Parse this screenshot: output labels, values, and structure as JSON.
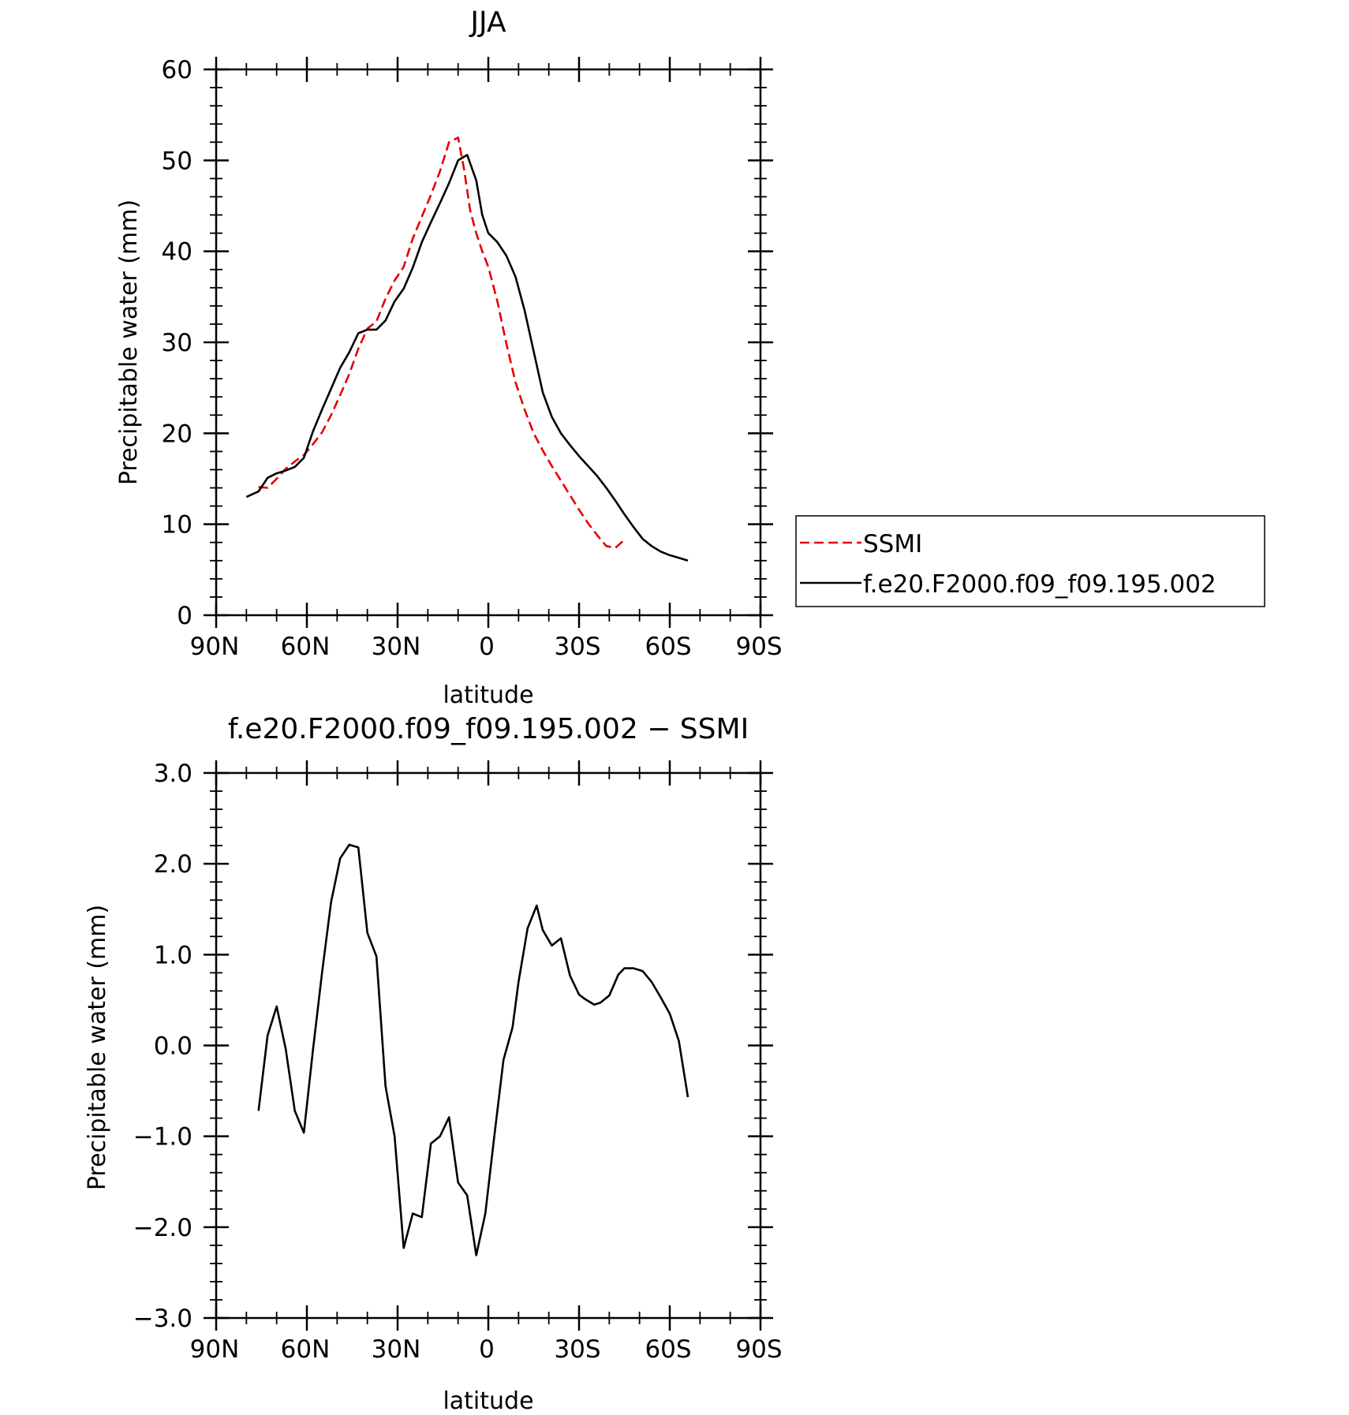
{
  "colors": {
    "ssmi": "#e60000",
    "model": "#000000",
    "axis": "#000000"
  },
  "charts": [
    {
      "title": "JJA",
      "xlabel": "latitude",
      "ylabel": "Precipitable water (mm)",
      "xticks": [
        "90N",
        "60N",
        "30N",
        "0",
        "30S",
        "60S",
        "90S"
      ],
      "yticks": [
        "0",
        "10",
        "20",
        "30",
        "40",
        "50",
        "60"
      ]
    },
    {
      "title": "f.e20.F2000.f09_f09.195.002 − SSMI",
      "xlabel": "latitude",
      "ylabel": "Precipitable water (mm)",
      "xticks": [
        "90N",
        "60N",
        "30N",
        "0",
        "30S",
        "60S",
        "90S"
      ],
      "yticks": [
        "−3.0",
        "−2.0",
        "−1.0",
        "0.0",
        "1.0",
        "2.0",
        "3.0"
      ]
    }
  ],
  "legend": {
    "entries": [
      "SSMI",
      "f.e20.F2000.f09_f09.195.002"
    ]
  },
  "chart_data": [
    {
      "type": "line",
      "title": "JJA",
      "xlabel": "latitude",
      "ylabel": "Precipitable water (mm)",
      "xlim": [
        90,
        -90
      ],
      "ylim": [
        0,
        60
      ],
      "legend_position": "right",
      "series": [
        {
          "name": "SSMI",
          "style": "dashed",
          "color": "#e60000",
          "x": [
            76,
            73,
            70,
            67,
            64,
            61,
            58,
            55,
            52,
            49,
            46,
            43,
            40,
            37,
            34,
            31,
            28,
            25,
            22,
            19,
            16,
            13,
            10,
            8,
            6,
            4,
            2,
            0,
            -3,
            -6,
            -9,
            -12,
            -15,
            -18,
            -21,
            -24,
            -27,
            -30,
            -33,
            -36,
            -39,
            -42,
            -45,
            -48,
            -51,
            -54,
            -57,
            -60,
            -63,
            -66
          ],
          "y": [
            14.1,
            14.0,
            15.0,
            16.1,
            16.9,
            17.6,
            18.8,
            20.1,
            22.0,
            24.2,
            26.5,
            29.3,
            31.5,
            32.3,
            34.8,
            36.8,
            38.3,
            41.4,
            43.8,
            46.2,
            48.8,
            52.0,
            52.5,
            49.0,
            44.5,
            42.0,
            40.0,
            38.3,
            34.5,
            29.8,
            25.6,
            22.6,
            20.0,
            18.1,
            16.4,
            14.8,
            13.2,
            11.6,
            10.1,
            8.8,
            7.6,
            7.4,
            8.3,
            null,
            null,
            null,
            null,
            null,
            null,
            null
          ]
        },
        {
          "name": "f.e20.F2000.f09_f09.195.002",
          "style": "solid",
          "color": "#000000",
          "x": [
            80,
            76,
            73,
            70,
            67,
            64,
            61,
            58,
            55,
            52,
            49,
            46,
            43,
            40,
            37,
            34,
            31,
            28,
            25,
            22,
            19,
            16,
            13,
            10,
            7,
            4,
            2,
            0,
            -3,
            -6,
            -9,
            -12,
            -15,
            -18,
            -21,
            -24,
            -27,
            -30,
            -33,
            -36,
            -39,
            -42,
            -45,
            -48,
            -51,
            -54,
            -57,
            -60,
            -63,
            -66
          ],
          "y": [
            13.0,
            13.6,
            15.1,
            15.6,
            15.9,
            16.3,
            17.3,
            20.2,
            22.6,
            24.9,
            27.2,
            28.9,
            31.0,
            31.4,
            31.4,
            32.4,
            34.5,
            35.9,
            38.2,
            41.0,
            43.2,
            45.3,
            47.5,
            50.0,
            50.6,
            47.8,
            44.0,
            42.0,
            41.0,
            39.5,
            37.2,
            33.5,
            29.0,
            24.5,
            21.8,
            20.0,
            18.7,
            17.5,
            16.4,
            15.3,
            14.0,
            12.6,
            11.1,
            9.7,
            8.4,
            7.6,
            7.0,
            6.6,
            6.3,
            6.0
          ]
        }
      ]
    },
    {
      "type": "line",
      "title": "f.e20.F2000.f09_f09.195.002 − SSMI",
      "xlabel": "latitude",
      "ylabel": "Precipitable water (mm)",
      "xlim": [
        90,
        -90
      ],
      "ylim": [
        -3,
        3
      ],
      "series": [
        {
          "style": "solid",
          "color": "#000000",
          "x": [
            76,
            73,
            70,
            67,
            64,
            61,
            58,
            55,
            52,
            49,
            46,
            43,
            40,
            37,
            34,
            31,
            28,
            25,
            22,
            19,
            16,
            13,
            10,
            7,
            4,
            1,
            -2,
            -5,
            -8,
            -10,
            -13,
            -16,
            -18,
            -21,
            -24,
            -27,
            -30,
            -32,
            -35,
            -37,
            -40,
            -43,
            -45,
            -48,
            -51,
            -54,
            -57,
            -60,
            -63,
            -66
          ],
          "y": [
            -0.72,
            0.11,
            0.43,
            -0.04,
            -0.72,
            -0.96,
            -0.05,
            0.8,
            1.58,
            2.06,
            2.21,
            2.18,
            1.24,
            0.98,
            -0.45,
            -1.0,
            -2.23,
            -1.85,
            -1.89,
            -1.08,
            -1.0,
            -0.79,
            -1.51,
            -1.65,
            -2.31,
            -1.85,
            -0.99,
            -0.16,
            0.2,
            0.7,
            1.29,
            1.54,
            1.27,
            1.1,
            1.18,
            0.77,
            0.56,
            0.51,
            0.45,
            0.47,
            0.55,
            0.78,
            0.85,
            0.85,
            0.82,
            0.7,
            0.53,
            0.35,
            0.05,
            -0.57
          ]
        }
      ]
    }
  ]
}
